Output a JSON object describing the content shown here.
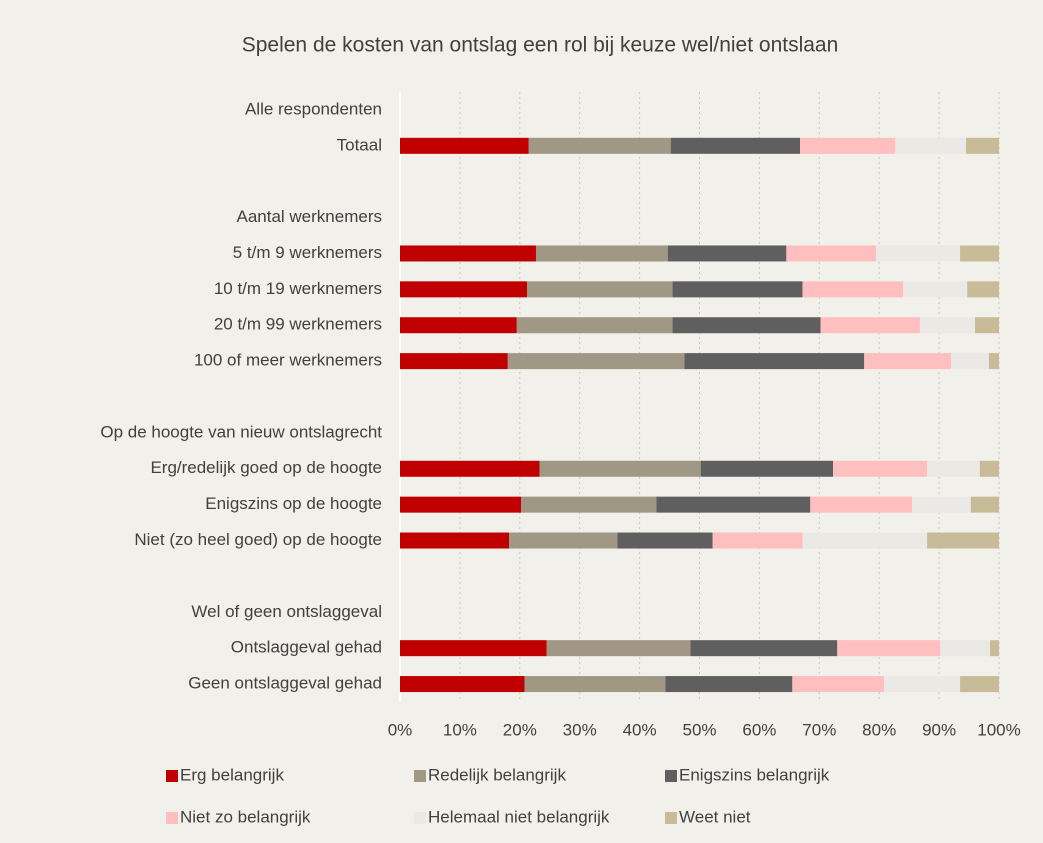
{
  "chart_data": {
    "type": "stacked_barh",
    "title": "Spelen de kosten van ontslag een rol bij keuze wel/niet ontslaan",
    "categories": [
      "Alle respondenten",
      "Totaal",
      null,
      "Aantal werknemers",
      "5 t/m 9 werknemers",
      "10 t/m 19 werknemers",
      "20 t/m 99 werknemers",
      "100 of meer werknemers",
      null,
      "Op de hoogte van nieuw ontslagrecht",
      "Erg/redelijk goed op de hoogte",
      "Enigszins op de hoogte",
      "Niet (zo heel goed) op de hoogte",
      null,
      "Wel of geen ontslaggeval",
      "Ontslaggeval gehad",
      "Geen ontslaggeval gehad"
    ],
    "series": [
      {
        "name": "Erg belangrijk",
        "color": "#c00000",
        "values": [
          null,
          21.5,
          null,
          null,
          22.7,
          21.2,
          19.5,
          18.0,
          null,
          null,
          23.3,
          20.2,
          18.2,
          null,
          null,
          24.5,
          20.8
        ]
      },
      {
        "name": "Redelijk belangrijk",
        "color": "#a09785",
        "values": [
          null,
          23.7,
          null,
          null,
          22.0,
          24.3,
          26.0,
          29.5,
          null,
          null,
          26.9,
          22.6,
          18.1,
          null,
          null,
          24.0,
          23.5
        ]
      },
      {
        "name": "Enigszins belangrijk",
        "color": "#5f5f5f",
        "values": [
          null,
          21.6,
          null,
          null,
          19.8,
          21.7,
          24.7,
          30.0,
          null,
          null,
          22.1,
          25.7,
          15.9,
          null,
          null,
          24.5,
          21.2
        ]
      },
      {
        "name": "Niet zo belangrijk",
        "color": "#ffbfbf",
        "values": [
          null,
          15.9,
          null,
          null,
          15.0,
          16.8,
          16.6,
          14.5,
          null,
          null,
          15.7,
          17.0,
          15.0,
          null,
          null,
          17.2,
          15.3
        ]
      },
      {
        "name": "Helemaal niet belangrijk",
        "color": "#ebe9e5",
        "values": [
          null,
          11.8,
          null,
          null,
          14.0,
          10.7,
          9.2,
          6.3,
          null,
          null,
          8.8,
          9.8,
          20.8,
          null,
          null,
          8.3,
          12.7
        ]
      },
      {
        "name": "Weet niet",
        "color": "#c8bc98",
        "values": [
          null,
          5.5,
          null,
          null,
          6.5,
          5.3,
          4.0,
          1.7,
          null,
          null,
          3.2,
          4.7,
          12.0,
          null,
          null,
          1.5,
          6.5
        ]
      }
    ],
    "xlim": [
      0,
      100
    ],
    "xticks": [
      {
        "value": 0,
        "label": "0%"
      },
      {
        "value": 10,
        "label": "10%"
      },
      {
        "value": 20,
        "label": "20%"
      },
      {
        "value": 30,
        "label": "30%"
      },
      {
        "value": 40,
        "label": "40%"
      },
      {
        "value": 50,
        "label": "50%"
      },
      {
        "value": 60,
        "label": "60%"
      },
      {
        "value": 70,
        "label": "70%"
      },
      {
        "value": 80,
        "label": "80%"
      },
      {
        "value": 90,
        "label": "90%"
      },
      {
        "value": 100,
        "label": "100%"
      }
    ],
    "grid": true
  }
}
